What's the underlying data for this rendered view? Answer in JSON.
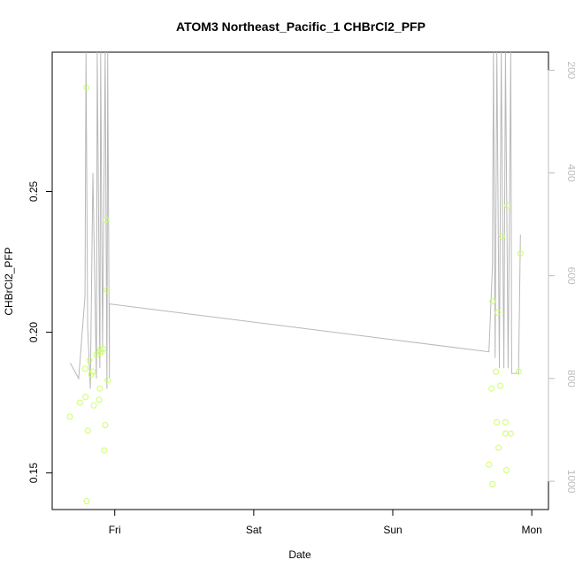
{
  "chart_data": {
    "type": "scatter",
    "title": "ATOM3 Northeast_Pacific_1 CHBrCl2_PFP",
    "xlabel": "Date",
    "ylabel": "CHBrCl2_PFP",
    "x_ticks": [
      {
        "label": "Fri",
        "value": 1.0
      },
      {
        "label": "Sat",
        "value": 2.0
      },
      {
        "label": "Sun",
        "value": 3.0
      },
      {
        "label": "Mon",
        "value": 4.0
      }
    ],
    "y_ticks": [
      0.15,
      0.2,
      0.25
    ],
    "y_tick_labels": [
      "0.15",
      "0.20",
      "0.25"
    ],
    "xlim": [
      0.55,
      4.12
    ],
    "ylim": [
      0.137,
      0.2995
    ],
    "right_axis": {
      "ticks": [
        200,
        400,
        600,
        800,
        1000
      ],
      "tick_labels": [
        "200",
        "400",
        "600",
        "800",
        "1000"
      ],
      "lim": [
        1055,
        165
      ],
      "color": "#bdbdbd"
    },
    "point_color": "#ccff66",
    "line_color": "#b8b8b8",
    "points": [
      {
        "x": 0.677,
        "y": 0.17
      },
      {
        "x": 0.749,
        "y": 0.175
      },
      {
        "x": 0.787,
        "y": 0.187
      },
      {
        "x": 0.79,
        "y": 0.177
      },
      {
        "x": 0.796,
        "y": 0.287
      },
      {
        "x": 0.799,
        "y": 0.14
      },
      {
        "x": 0.806,
        "y": 0.165
      },
      {
        "x": 0.818,
        "y": 0.19
      },
      {
        "x": 0.83,
        "y": 0.185
      },
      {
        "x": 0.843,
        "y": 0.186
      },
      {
        "x": 0.849,
        "y": 0.174
      },
      {
        "x": 0.868,
        "y": 0.192
      },
      {
        "x": 0.887,
        "y": 0.176
      },
      {
        "x": 0.893,
        "y": 0.193
      },
      {
        "x": 0.893,
        "y": 0.18
      },
      {
        "x": 0.899,
        "y": 0.194
      },
      {
        "x": 0.906,
        "y": 0.193
      },
      {
        "x": 0.918,
        "y": 0.194
      },
      {
        "x": 0.925,
        "y": 0.158
      },
      {
        "x": 0.931,
        "y": 0.167
      },
      {
        "x": 0.937,
        "y": 0.24
      },
      {
        "x": 0.944,
        "y": 0.215
      },
      {
        "x": 0.949,
        "y": 0.183
      },
      {
        "x": 3.692,
        "y": 0.153
      },
      {
        "x": 3.711,
        "y": 0.18
      },
      {
        "x": 3.717,
        "y": 0.211
      },
      {
        "x": 3.717,
        "y": 0.146
      },
      {
        "x": 3.742,
        "y": 0.186
      },
      {
        "x": 3.749,
        "y": 0.168
      },
      {
        "x": 3.755,
        "y": 0.207
      },
      {
        "x": 3.761,
        "y": 0.159
      },
      {
        "x": 3.774,
        "y": 0.181
      },
      {
        "x": 3.786,
        "y": 0.234
      },
      {
        "x": 3.811,
        "y": 0.168
      },
      {
        "x": 3.811,
        "y": 0.164
      },
      {
        "x": 3.818,
        "y": 0.151
      },
      {
        "x": 3.824,
        "y": 0.245
      },
      {
        "x": 3.849,
        "y": 0.164
      },
      {
        "x": 3.906,
        "y": 0.186
      },
      {
        "x": 3.918,
        "y": 0.228
      }
    ],
    "line_series": {
      "axis": "right",
      "note_units": "pressure",
      "points": [
        {
          "x": 0.68,
          "y": 770
        },
        {
          "x": 0.74,
          "y": 800
        },
        {
          "x": 0.786,
          "y": 640
        },
        {
          "x": 0.793,
          "y": 165
        },
        {
          "x": 0.805,
          "y": 700
        },
        {
          "x": 0.824,
          "y": 820
        },
        {
          "x": 0.843,
          "y": 400
        },
        {
          "x": 0.868,
          "y": 800
        },
        {
          "x": 0.874,
          "y": 165
        },
        {
          "x": 0.893,
          "y": 780
        },
        {
          "x": 0.899,
          "y": 165
        },
        {
          "x": 0.912,
          "y": 740
        },
        {
          "x": 0.931,
          "y": 165
        },
        {
          "x": 0.944,
          "y": 820
        },
        {
          "x": 0.949,
          "y": 165
        },
        {
          "x": 0.962,
          "y": 800
        },
        {
          "x": 0.962,
          "y": 655
        },
        {
          "x": 3.692,
          "y": 748
        },
        {
          "x": 3.717,
          "y": 580
        },
        {
          "x": 3.724,
          "y": 165
        },
        {
          "x": 3.736,
          "y": 760
        },
        {
          "x": 3.749,
          "y": 165
        },
        {
          "x": 3.767,
          "y": 780
        },
        {
          "x": 3.78,
          "y": 165
        },
        {
          "x": 3.799,
          "y": 780
        },
        {
          "x": 3.811,
          "y": 165
        },
        {
          "x": 3.83,
          "y": 780
        },
        {
          "x": 3.849,
          "y": 165
        },
        {
          "x": 3.855,
          "y": 790
        },
        {
          "x": 3.905,
          "y": 790
        },
        {
          "x": 3.918,
          "y": 520
        }
      ]
    }
  }
}
